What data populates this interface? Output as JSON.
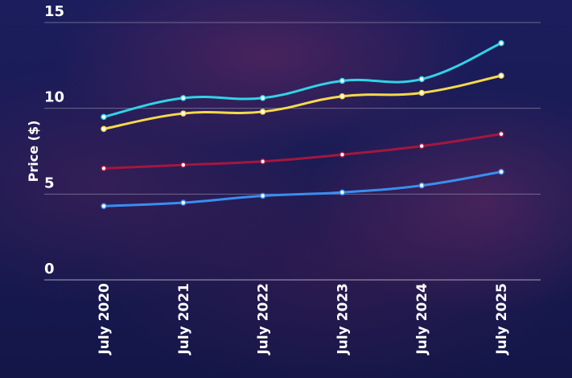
{
  "chart_data": {
    "type": "line",
    "ylabel": "Price ($)",
    "xlabel": "",
    "ylim": [
      0,
      15
    ],
    "yticks": [
      0,
      5,
      10,
      15
    ],
    "categories": [
      "July 2020",
      "July 2021",
      "July 2022",
      "July 2023",
      "July 2024",
      "July 2025"
    ],
    "grid": true,
    "series": [
      {
        "color": "#31d3e6",
        "values": [
          9.5,
          10.6,
          10.6,
          11.6,
          11.7,
          13.8
        ]
      },
      {
        "color": "#f5d94c",
        "values": [
          8.8,
          9.7,
          9.8,
          10.7,
          10.9,
          11.9
        ]
      },
      {
        "color": "#a3173f",
        "values": [
          6.5,
          6.7,
          6.9,
          7.3,
          7.8,
          8.5
        ]
      },
      {
        "color": "#3a8ef0",
        "values": [
          4.3,
          4.5,
          4.9,
          5.1,
          5.5,
          6.3
        ]
      }
    ]
  }
}
